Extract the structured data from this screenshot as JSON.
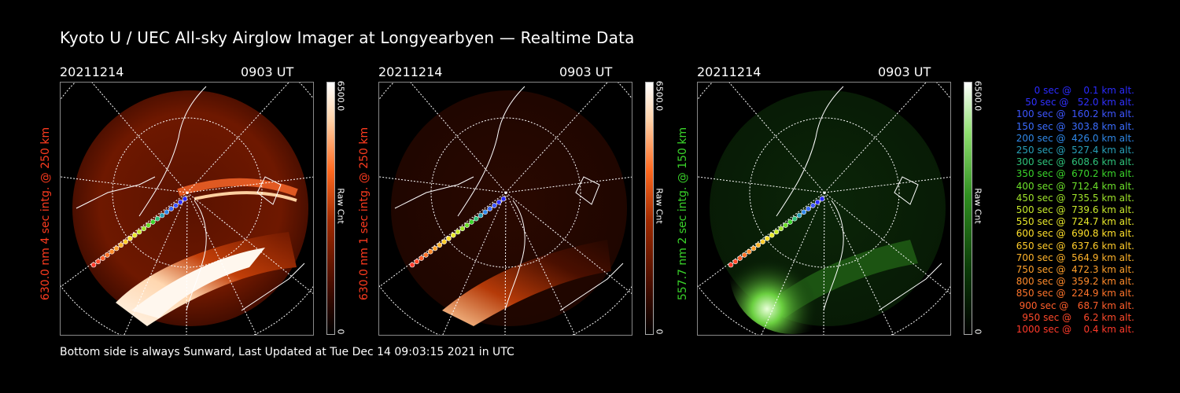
{
  "title": "Kyoto U / UEC All-sky Airglow Imager at Longyearbyen — Realtime Data",
  "footer": "Bottom side is always Sunward, Last Updated at Tue Dec 14 09:03:15 2021 in UTC",
  "panels": [
    {
      "date": "20211214",
      "time": "0903 UT",
      "ylabel": "630.0 nm  4 sec intg. @ 250 km",
      "cb_top": "6500.0",
      "cb_mid": "Raw Cnt",
      "cb_bot": "0",
      "label_color": "#ff3b1f"
    },
    {
      "date": "20211214",
      "time": "0903 UT",
      "ylabel": "630.0 nm  1 sec intg. @ 250 km",
      "cb_top": "6500.0",
      "cb_mid": "Raw Cnt",
      "cb_bot": "0",
      "label_color": "#ff3b1f"
    },
    {
      "date": "20211214",
      "time": "0903 UT",
      "ylabel": "557.7 nm  2 sec intg. @ 150 km",
      "cb_top": "6500.0",
      "cb_mid": "Raw Cnt",
      "cb_bot": "0",
      "label_color": "#3ad42a"
    }
  ],
  "legend": [
    {
      "text": "   0 sec @    0.1 km alt.",
      "color": "#2a2aff"
    },
    {
      "text": "  50 sec @   52.0 km alt.",
      "color": "#3030ff"
    },
    {
      "text": " 100 sec @  160.2 km alt.",
      "color": "#3d55ff"
    },
    {
      "text": " 150 sec @  303.8 km alt.",
      "color": "#3a6cff"
    },
    {
      "text": " 200 sec @  426.0 km alt.",
      "color": "#2f88e8"
    },
    {
      "text": " 250 sec @  527.4 km alt.",
      "color": "#28a0b8"
    },
    {
      "text": " 300 sec @  608.6 km alt.",
      "color": "#2ec27a"
    },
    {
      "text": " 350 sec @  670.2 km alt.",
      "color": "#3ad42a"
    },
    {
      "text": " 400 sec @  712.4 km alt.",
      "color": "#6ce02a"
    },
    {
      "text": " 450 sec @  735.5 km alt.",
      "color": "#9fe32a"
    },
    {
      "text": " 500 sec @  739.6 km alt.",
      "color": "#c8e82a"
    },
    {
      "text": " 550 sec @  724.7 km alt.",
      "color": "#e8e82a"
    },
    {
      "text": " 600 sec @  690.8 km alt.",
      "color": "#ffe02a"
    },
    {
      "text": " 650 sec @  637.6 km alt.",
      "color": "#ffcc2a"
    },
    {
      "text": " 700 sec @  564.9 km alt.",
      "color": "#ffb42a"
    },
    {
      "text": " 750 sec @  472.3 km alt.",
      "color": "#ff9f2a"
    },
    {
      "text": " 800 sec @  359.2 km alt.",
      "color": "#ff8a2a"
    },
    {
      "text": " 850 sec @  224.9 km alt.",
      "color": "#ff742a"
    },
    {
      "text": " 900 sec @   68.7 km alt.",
      "color": "#ff5e2a"
    },
    {
      "text": " 950 sec @    6.2 km alt.",
      "color": "#ff4a2a"
    },
    {
      "text": "1000 sec @    0.4 km alt.",
      "color": "#ff3a2a"
    }
  ]
}
